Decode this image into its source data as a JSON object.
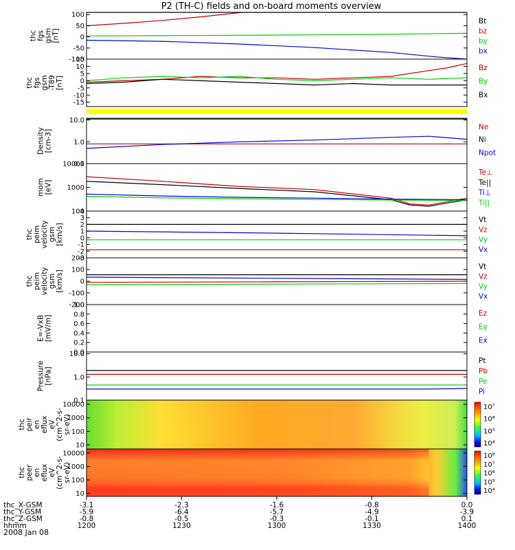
{
  "title": "P2 (TH-C) fields and on-board moments overview",
  "date": "2008 Jan 08",
  "time_axis": {
    "rows": [
      {
        "label": "thc_X-GSM",
        "values": [
          "-3.1",
          "-2.3",
          "-1.6",
          "-0.8",
          "0.0"
        ]
      },
      {
        "label": "thc_Y-GSM",
        "values": [
          "-5.9",
          "-6.4",
          "-5.7",
          "-4.9",
          "-3.9"
        ]
      },
      {
        "label": "thc_Z-GSM",
        "values": [
          "-0.8",
          "-0.5",
          "-0.3",
          "-0.1",
          "0.1"
        ]
      },
      {
        "label": "hhmm",
        "values": [
          "1200",
          "1230",
          "1300",
          "1330",
          "1400"
        ]
      }
    ]
  },
  "colors": {
    "black": "#000000",
    "red": "#c00000",
    "green": "#00cc00",
    "blue": "#0000dd",
    "yellow": "#ffff00"
  },
  "chart_data": [
    {
      "id": "fgs_gsm",
      "type": "line",
      "ylabel": [
        "thc",
        "fgs",
        "gsm",
        "[nT]"
      ],
      "ticks": [
        "100",
        "50",
        "0",
        "-50",
        "-100"
      ],
      "tick_values": [
        100,
        50,
        0,
        -50,
        -100
      ],
      "ylim": [
        -100,
        110
      ],
      "series": [
        {
          "name": "Bt",
          "color": "black",
          "x": [
            0,
            1
          ],
          "y": [
            110,
            110
          ]
        },
        {
          "name": "bz",
          "color": "red",
          "x": [
            0,
            0.1,
            0.2,
            0.3,
            0.41
          ],
          "y": [
            50,
            61,
            74,
            90,
            110
          ]
        },
        {
          "name": "by",
          "color": "green",
          "x": [
            0,
            0.25,
            0.5,
            0.75,
            1
          ],
          "y": [
            4,
            6,
            8,
            11,
            16
          ]
        },
        {
          "name": "bx",
          "color": "blue",
          "x": [
            0,
            0.2,
            0.4,
            0.6,
            0.8,
            0.92,
            1
          ],
          "y": [
            -15,
            -20,
            -32,
            -48,
            -70,
            -90,
            -100
          ]
        }
      ]
    },
    {
      "id": "fgs_dsl",
      "type": "line",
      "ylabel": [
        "thc",
        "fgs",
        "gsm",
        "-T89",
        "[nT]"
      ],
      "ticks": [
        "15",
        "10",
        "5",
        "0",
        "-5",
        "-10",
        "-15"
      ],
      "tick_values": [
        15,
        10,
        5,
        0,
        -5,
        -10,
        -15
      ],
      "ylim": [
        -18,
        15
      ],
      "series": [
        {
          "name": "Bz",
          "color": "red",
          "x": [
            0,
            0.1,
            0.2,
            0.3,
            0.4,
            0.5,
            0.6,
            0.7,
            0.8,
            0.85,
            0.9,
            0.95,
            1
          ],
          "y": [
            -1,
            0,
            1,
            3,
            2,
            2,
            1,
            2,
            3,
            5,
            7,
            9,
            12
          ]
        },
        {
          "name": "By",
          "color": "green",
          "x": [
            0,
            0.1,
            0.2,
            0.3,
            0.4,
            0.5,
            0.6,
            0.7,
            0.8,
            0.9,
            1
          ],
          "y": [
            0,
            2,
            3,
            2,
            3,
            1,
            0,
            1,
            2,
            1,
            2
          ]
        },
        {
          "name": "Bx",
          "color": "black",
          "x": [
            0,
            0.1,
            0.2,
            0.3,
            0.4,
            0.5,
            0.6,
            0.7,
            0.8,
            0.9,
            1
          ],
          "y": [
            -2,
            -1,
            1,
            0,
            -1,
            -2,
            -3,
            -2,
            -3,
            -3,
            -3
          ]
        }
      ]
    },
    {
      "id": "density",
      "type": "line",
      "scale": "log",
      "ylabel": [
        "Density",
        "[cm-3]"
      ],
      "ticks": [
        "10.0",
        "1.0",
        "0.1"
      ],
      "tick_values": [
        10,
        1,
        0.1
      ],
      "ylim": [
        0.1,
        12
      ],
      "series": [
        {
          "name": "Ne",
          "color": "red",
          "x": [
            0,
            1
          ],
          "y": [
            0.8,
            0.8
          ]
        },
        {
          "name": "Ni",
          "color": "black",
          "x": [
            0,
            1
          ],
          "y": [
            11,
            11
          ]
        },
        {
          "name": "Npot",
          "color": "blue",
          "x": [
            0,
            0.2,
            0.4,
            0.6,
            0.8,
            0.9,
            1
          ],
          "y": [
            0.5,
            0.75,
            1.0,
            1.2,
            1.6,
            1.8,
            1.3
          ]
        }
      ]
    },
    {
      "id": "temperature",
      "type": "line",
      "scale": "log",
      "ylabel": [
        "mom",
        "[eV]"
      ],
      "ticks": [
        "10000",
        "1000",
        "100"
      ],
      "tick_values": [
        10000,
        1000,
        100
      ],
      "ylim": [
        100,
        10000
      ],
      "series": [
        {
          "name": "Te⊥",
          "color": "red",
          "x": [
            0,
            0.2,
            0.4,
            0.6,
            0.8,
            0.85,
            0.9,
            0.95,
            1
          ],
          "y": [
            2800,
            1800,
            1100,
            800,
            350,
            200,
            180,
            250,
            350
          ]
        },
        {
          "name": "Te||",
          "color": "black",
          "x": [
            0,
            0.2,
            0.4,
            0.6,
            0.8,
            0.85,
            0.9,
            0.95,
            1
          ],
          "y": [
            1800,
            1300,
            900,
            650,
            300,
            180,
            160,
            220,
            300
          ]
        },
        {
          "name": "Ti⊥",
          "color": "blue",
          "x": [
            0,
            0.2,
            0.4,
            0.6,
            0.8,
            1
          ],
          "y": [
            520,
            430,
            380,
            350,
            320,
            300
          ]
        },
        {
          "name": "Ti||",
          "color": "green",
          "x": [
            0,
            0.2,
            0.4,
            0.6,
            0.8,
            1
          ],
          "y": [
            420,
            360,
            330,
            310,
            290,
            280
          ]
        }
      ]
    },
    {
      "id": "velocity_small",
      "type": "line",
      "ylabel": [
        "thc",
        "peim",
        "velocity",
        "gsm",
        "[km/s]"
      ],
      "ticks": [
        "4",
        "3",
        "2",
        "1",
        "0",
        "-1",
        "-2",
        "-3"
      ],
      "tick_values": [
        4,
        3,
        2,
        1,
        0,
        -1,
        -2,
        -3
      ],
      "ylim": [
        -3,
        4
      ],
      "series": [
        {
          "name": "Vt",
          "color": "black",
          "x": [
            0,
            1
          ],
          "y": [
            2,
            2
          ]
        },
        {
          "name": "Vz",
          "color": "red",
          "x": [
            0,
            1
          ],
          "y": [
            -1.8,
            -1.8
          ]
        },
        {
          "name": "Vy",
          "color": "green",
          "x": [
            0,
            1
          ],
          "y": [
            -0.3,
            -0.3
          ]
        },
        {
          "name": "Vx",
          "color": "blue",
          "x": [
            0,
            0.5,
            1
          ],
          "y": [
            1.0,
            0.7,
            0.3
          ]
        }
      ]
    },
    {
      "id": "velocity_large",
      "type": "line",
      "ylabel": [
        "thc",
        "peim",
        "velocity",
        "gsm",
        "[km/s]"
      ],
      "ticks": [
        "200",
        "100",
        "0",
        "-100",
        "-200"
      ],
      "tick_values": [
        200,
        100,
        0,
        -100,
        -200
      ],
      "ylim": [
        -200,
        200
      ],
      "series": [
        {
          "name": "Vt",
          "color": "black",
          "x": [
            0,
            1
          ],
          "y": [
            55,
            55
          ]
        },
        {
          "name": "Vz",
          "color": "red",
          "x": [
            0,
            0.5,
            1
          ],
          "y": [
            -10,
            -5,
            0
          ]
        },
        {
          "name": "Vy",
          "color": "green",
          "x": [
            0,
            0.5,
            1
          ],
          "y": [
            -30,
            -25,
            -20
          ]
        },
        {
          "name": "Vx",
          "color": "blue",
          "x": [
            0,
            0.5,
            1
          ],
          "y": [
            35,
            25,
            15
          ]
        }
      ]
    },
    {
      "id": "efield",
      "type": "line",
      "ylabel": [
        "E=-VxB",
        "[mV/m]"
      ],
      "ticks": [
        "1.0",
        "0.8",
        "0.6",
        "0.4",
        "0.2",
        "0.0"
      ],
      "tick_values": [
        1.0,
        0.8,
        0.6,
        0.4,
        0.2,
        0.0
      ],
      "ylim": [
        0,
        1
      ],
      "series": [
        {
          "name": "Ez",
          "color": "red",
          "x": [],
          "y": []
        },
        {
          "name": "Ey",
          "color": "green",
          "x": [],
          "y": []
        },
        {
          "name": "Ex",
          "color": "blue",
          "x": [],
          "y": []
        }
      ]
    },
    {
      "id": "pressure",
      "type": "line",
      "scale": "log",
      "ylabel": [
        "Pressure",
        "[nPa]"
      ],
      "ticks": [
        "10.0",
        "1.0",
        "0.1"
      ],
      "tick_values": [
        10,
        1,
        0.1
      ],
      "ylim": [
        0.1,
        12
      ],
      "series": [
        {
          "name": "Pt",
          "color": "black",
          "x": [
            0,
            1
          ],
          "y": [
            1.9,
            1.9
          ]
        },
        {
          "name": "Pb",
          "color": "red",
          "x": [
            0,
            1
          ],
          "y": [
            1.3,
            1.3
          ]
        },
        {
          "name": "Pe",
          "color": "green",
          "x": [
            0,
            1
          ],
          "y": [
            0.45,
            0.45
          ]
        },
        {
          "name": "Pi",
          "color": "blue",
          "x": [
            0,
            0.1,
            0.9,
            1
          ],
          "y": [
            0.3,
            0.3,
            0.3,
            0.32
          ]
        }
      ]
    },
    {
      "id": "peir_spectrogram",
      "type": "heatmap",
      "scale": "log",
      "ylabel": [
        "thc",
        "peir",
        "en",
        "eflux",
        "eV",
        "(cm^2-s-",
        "sr-eV)"
      ],
      "ticks": [
        "10000",
        "1000",
        "100",
        "10"
      ],
      "tick_values": [
        10000,
        1000,
        100,
        10
      ],
      "ylim": [
        5,
        20000
      ],
      "colorbar": {
        "ticks": [
          "10⁷",
          "10⁶",
          "10⁵",
          "10⁴"
        ]
      }
    },
    {
      "id": "peer_spectrogram",
      "type": "heatmap",
      "scale": "log",
      "ylabel": [
        "thc",
        "peer",
        "en",
        "eflux",
        "eV",
        "(cm^2-s-",
        "sr-eV)"
      ],
      "ticks": [
        "10000",
        "1000",
        "100",
        "10"
      ],
      "tick_values": [
        10000,
        1000,
        100,
        10
      ],
      "ylim": [
        6,
        20000
      ],
      "colorbar": {
        "ticks": [
          "10⁸",
          "10⁷",
          "10⁶",
          "10⁵",
          "10⁴"
        ]
      }
    }
  ]
}
